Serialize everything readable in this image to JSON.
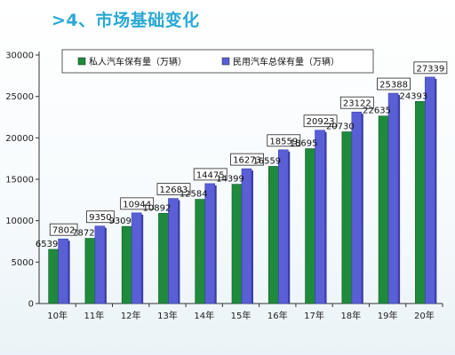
{
  "title": ">4、市场基础变化",
  "chart_data": {
    "type": "bar",
    "categories": [
      "10年",
      "11年",
      "12年",
      "13年",
      "14年",
      "15年",
      "16年",
      "17年",
      "18年",
      "19年",
      "20年"
    ],
    "series": [
      {
        "name": "私人汽车保有量（万辆）",
        "color": "#1f8a3c",
        "values": [
          6539,
          7872,
          9309,
          10892,
          12584,
          14399,
          16559,
          18695,
          20730,
          22635,
          24393
        ]
      },
      {
        "name": "民用汽车总保有量（万辆）",
        "color": "#5a5fd6",
        "values": [
          7802,
          9350,
          10944,
          12683,
          14475,
          16273,
          18559,
          20923,
          23122,
          25388,
          27339
        ]
      }
    ],
    "series_labels": [
      [
        "6539",
        "7872",
        "9309",
        "10892",
        "12584",
        "14399",
        "16559",
        "18695",
        "20730",
        "22635",
        "24393"
      ],
      [
        "7802",
        "9350",
        "10944",
        "12683",
        "14475",
        "16273",
        "18559",
        "20923",
        "23122",
        "25388",
        "27339"
      ]
    ],
    "y_ticks": [
      "0",
      "5000",
      "10000",
      "15000",
      "20000",
      "25000",
      "30000"
    ],
    "ylim": [
      0,
      30000
    ],
    "legend_position": "top",
    "grid": false
  }
}
